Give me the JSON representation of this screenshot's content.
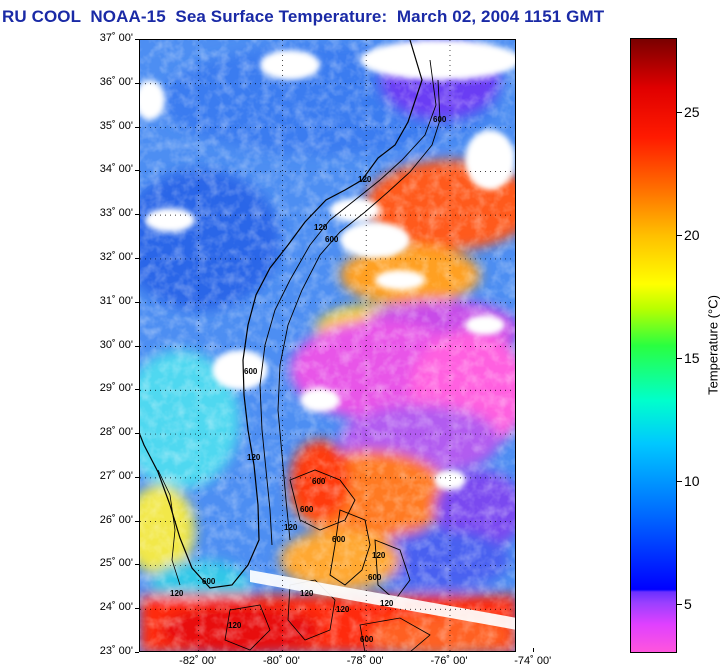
{
  "title": "RU COOL  NOAA-15  Sea Surface Temperature:  March 02, 2004 1151 GMT",
  "map": {
    "latitude_labels": [
      "37˚ 00'",
      "36˚ 00'",
      "35˚ 00'",
      "34˚ 00'",
      "33˚ 00'",
      "32˚ 00'",
      "31˚ 00'",
      "30˚ 00'",
      "29˚ 00'",
      "28˚ 00'",
      "27˚ 00'",
      "26˚ 00'",
      "25˚ 00'",
      "24˚ 00'",
      "23˚ 00'"
    ],
    "longitude_labels": [
      "-82˚ 00'",
      "-80˚ 00'",
      "-78˚ 00'",
      "-76˚ 00'",
      "-74˚ 00'"
    ],
    "lat_range": [
      23,
      37
    ],
    "lon_range": [
      -83.4,
      -74.4
    ],
    "bathymetry_contours": [
      "120",
      "600"
    ],
    "colors": {
      "land_cloud": "#ffffff",
      "coastline": "#000000"
    }
  },
  "colorbar": {
    "title": "Temperature (°C)",
    "range": [
      3,
      28
    ],
    "ticks": [
      "5",
      "10",
      "15",
      "20",
      "25"
    ],
    "tick_values": [
      5,
      10,
      15,
      20,
      25
    ]
  }
}
